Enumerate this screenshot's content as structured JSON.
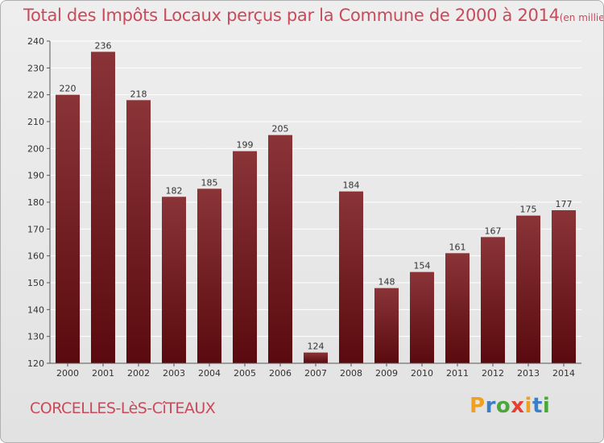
{
  "header": {
    "title": "Total des Impôts Locaux perçus par la Commune de 2000 à 2014",
    "unit": "(en milliers d'€)"
  },
  "footer": {
    "commune": "CORCELLES-LèS-CîTEAUX",
    "logo": [
      "P",
      "r",
      "o",
      "x",
      "i",
      "t",
      "i"
    ]
  },
  "colors": {
    "title": "#c94a5a",
    "bar_top": "#8a3438",
    "bar_bottom": "#5a0a0e",
    "grid": "#ffffff",
    "logo": [
      "#f0a020",
      "#3a7fc8",
      "#4aa83a",
      "#e84030",
      "#f0a020",
      "#3a7fc8",
      "#4aa83a"
    ]
  },
  "chart_data": {
    "type": "bar",
    "title": "Total des Impôts Locaux perçus par la Commune de 2000 à 2014",
    "categories": [
      "2000",
      "2001",
      "2002",
      "2003",
      "2004",
      "2005",
      "2006",
      "2007",
      "2008",
      "2009",
      "2010",
      "2011",
      "2012",
      "2013",
      "2014"
    ],
    "values": [
      220,
      236,
      218,
      182,
      185,
      199,
      205,
      124,
      184,
      148,
      154,
      161,
      167,
      175,
      177
    ],
    "ylim": [
      120,
      240
    ],
    "yticks": [
      120,
      130,
      140,
      150,
      160,
      170,
      180,
      190,
      200,
      210,
      220,
      230,
      240
    ],
    "grid": true,
    "data_labels": true
  }
}
